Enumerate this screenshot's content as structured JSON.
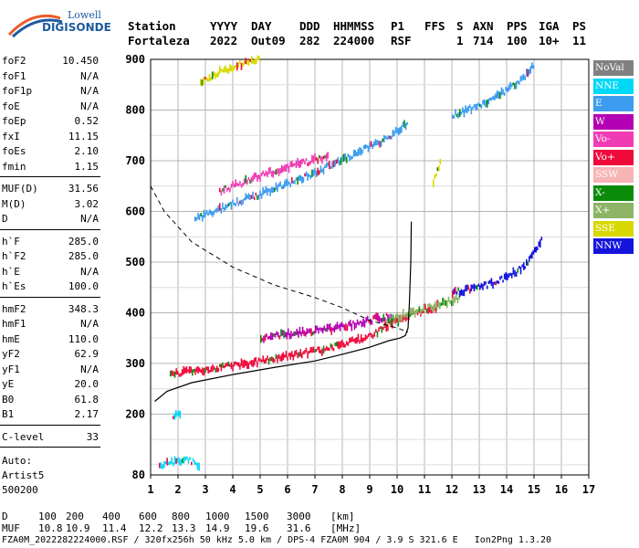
{
  "logo": {
    "line1": "Lowell",
    "line2": "DIGISONDE"
  },
  "header": {
    "labels": [
      "Station",
      "YYYY",
      "DAY",
      "DDD",
      "HHMMSS",
      "P1",
      "FFS",
      "S",
      "AXN",
      "PPS",
      "IGA",
      "PS"
    ],
    "values": [
      "Fortaleza",
      "2022",
      "Out09",
      "282",
      "224000",
      "RSF",
      "",
      "1",
      "714",
      "100",
      "10+",
      "11"
    ]
  },
  "params": {
    "group1": [
      {
        "label": "foF2",
        "value": "10.450"
      },
      {
        "label": "foF1",
        "value": "N/A"
      },
      {
        "label": "foF1p",
        "value": "N/A"
      },
      {
        "label": "foE",
        "value": "N/A"
      },
      {
        "label": "foEp",
        "value": "0.52"
      },
      {
        "label": "fxI",
        "value": "11.15"
      },
      {
        "label": "foEs",
        "value": "2.10"
      },
      {
        "label": "fmin",
        "value": "1.15"
      }
    ],
    "group2": [
      {
        "label": "MUF(D)",
        "value": "31.56"
      },
      {
        "label": "M(D)",
        "value": "3.02"
      },
      {
        "label": "D",
        "value": "N/A"
      }
    ],
    "group3": [
      {
        "label": "h`F",
        "value": "285.0"
      },
      {
        "label": "h`F2",
        "value": "285.0"
      },
      {
        "label": "h`E",
        "value": "N/A"
      },
      {
        "label": "h`Es",
        "value": "100.0"
      }
    ],
    "group4": [
      {
        "label": "hmF2",
        "value": "348.3"
      },
      {
        "label": "hmF1",
        "value": "N/A"
      },
      {
        "label": "hmE",
        "value": "110.0"
      },
      {
        "label": "yF2",
        "value": "62.9"
      },
      {
        "label": "yF1",
        "value": "N/A"
      },
      {
        "label": "yE",
        "value": "20.0"
      },
      {
        "label": "B0",
        "value": "61.8"
      },
      {
        "label": "B1",
        "value": "2.17"
      }
    ],
    "group5": [
      {
        "label": "C-level",
        "value": "33"
      }
    ],
    "auto": [
      "Auto:",
      "Artist5",
      "500200"
    ]
  },
  "legend": [
    {
      "label": "NoVal",
      "color": "#808080"
    },
    {
      "label": "NNE",
      "color": "#00d8f8"
    },
    {
      "label": "E",
      "color": "#3c9cf0"
    },
    {
      "label": "W",
      "color": "#b400b4"
    },
    {
      "label": "Vo-",
      "color": "#f03cb4"
    },
    {
      "label": "Vo+",
      "color": "#f00a3c"
    },
    {
      "label": "SSW",
      "color": "#f8b4b4"
    },
    {
      "label": "X-",
      "color": "#0a8c0a"
    },
    {
      "label": "X+",
      "color": "#8cb464"
    },
    {
      "label": "SSE",
      "color": "#d8d800"
    },
    {
      "label": "NNW",
      "color": "#1414dc"
    }
  ],
  "footer": {
    "d_label": "D",
    "d_values": [
      "100",
      "200",
      "400",
      "600",
      "800",
      "1000",
      "1500",
      "3000",
      "[km]"
    ],
    "muf_label": "MUF",
    "muf_values": [
      "10.8",
      "10.9",
      "11.4",
      "12.2",
      "13.3",
      "14.9",
      "19.6",
      "31.6",
      "[MHz]"
    ],
    "info": "FZA0M_2022282224000.RSF / 320fx256h 50 kHz 5.0 km / DPS-4 FZA0M 904 / 3.9 S 321.6 E   Ion2Png 1.3.20"
  },
  "chart_data": {
    "type": "scatter",
    "xlim": [
      1,
      17
    ],
    "ylim": [
      80,
      900
    ],
    "x_ticks": [
      1,
      2,
      3,
      4,
      5,
      6,
      7,
      8,
      9,
      10,
      11,
      12,
      13,
      14,
      15,
      16,
      17
    ],
    "y_ticks": [
      80,
      200,
      300,
      400,
      500,
      600,
      700,
      800,
      900
    ],
    "grid": true,
    "traces": [
      {
        "mode": "Vo+",
        "points": [
          [
            1.7,
            280
          ],
          [
            2.5,
            285
          ],
          [
            3.5,
            292
          ],
          [
            4.5,
            300
          ],
          [
            5.5,
            310
          ],
          [
            6.5,
            320
          ],
          [
            7.5,
            330
          ],
          [
            8.5,
            345
          ],
          [
            9.2,
            360
          ],
          [
            9.8,
            380
          ],
          [
            10.4,
            395
          ],
          [
            11.0,
            405
          ],
          [
            11.5,
            415
          ]
        ]
      },
      {
        "mode": "W",
        "points": [
          [
            5.0,
            350
          ],
          [
            6.0,
            358
          ],
          [
            7.0,
            365
          ],
          [
            8.0,
            372
          ],
          [
            9.0,
            385
          ],
          [
            9.8,
            395
          ]
        ]
      },
      {
        "mode": "X+",
        "points": [
          [
            9.5,
            380
          ],
          [
            10.2,
            395
          ],
          [
            11.0,
            408
          ],
          [
            11.8,
            420
          ],
          [
            12.3,
            430
          ]
        ]
      },
      {
        "mode": "NNW",
        "points": [
          [
            12.0,
            440
          ],
          [
            13.0,
            450
          ],
          [
            14.0,
            470
          ],
          [
            14.6,
            490
          ],
          [
            15.0,
            520
          ],
          [
            15.3,
            550
          ]
        ]
      },
      {
        "mode": "E",
        "points": [
          [
            2.6,
            585
          ],
          [
            3.5,
            605
          ],
          [
            4.5,
            625
          ],
          [
            5.5,
            645
          ],
          [
            6.5,
            665
          ],
          [
            7.5,
            690
          ],
          [
            8.5,
            715
          ],
          [
            9.5,
            740
          ],
          [
            10.4,
            775
          ]
        ]
      },
      {
        "mode": "Vo-",
        "points": [
          [
            3.5,
            640
          ],
          [
            4.5,
            660
          ],
          [
            5.5,
            680
          ],
          [
            6.5,
            695
          ],
          [
            7.5,
            710
          ]
        ]
      },
      {
        "mode": "SSE",
        "points": [
          [
            2.8,
            855
          ],
          [
            3.5,
            875
          ],
          [
            4.5,
            895
          ],
          [
            5.0,
            900
          ]
        ]
      },
      {
        "mode": "E",
        "points": [
          [
            12.0,
            790
          ],
          [
            13.0,
            810
          ],
          [
            14.0,
            840
          ],
          [
            14.7,
            870
          ],
          [
            15.0,
            890
          ]
        ]
      },
      {
        "mode": "NNE",
        "points": [
          [
            1.8,
            195
          ],
          [
            2.1,
            200
          ]
        ]
      },
      {
        "mode": "NNE",
        "points": [
          [
            1.3,
            100
          ],
          [
            1.8,
            105
          ],
          [
            2.3,
            110
          ],
          [
            2.8,
            100
          ]
        ]
      },
      {
        "mode": "SSE",
        "points": [
          [
            11.3,
            660
          ],
          [
            11.6,
            700
          ]
        ]
      }
    ],
    "profile_solid": [
      [
        1.15,
        225
      ],
      [
        1.6,
        245
      ],
      [
        2.5,
        262
      ],
      [
        4,
        278
      ],
      [
        5.5,
        292
      ],
      [
        7,
        305
      ],
      [
        8,
        318
      ],
      [
        9,
        332
      ],
      [
        9.7,
        345
      ],
      [
        10.1,
        350
      ],
      [
        10.3,
        355
      ],
      [
        10.4,
        370
      ],
      [
        10.45,
        420
      ],
      [
        10.5,
        500
      ],
      [
        10.52,
        580
      ]
    ],
    "profile_dashed": [
      [
        1.0,
        650
      ],
      [
        1.5,
        600
      ],
      [
        2.5,
        540
      ],
      [
        4,
        490
      ],
      [
        5.5,
        455
      ],
      [
        7,
        430
      ],
      [
        8,
        410
      ],
      [
        9,
        385
      ],
      [
        10,
        370
      ],
      [
        10.4,
        362
      ]
    ]
  }
}
